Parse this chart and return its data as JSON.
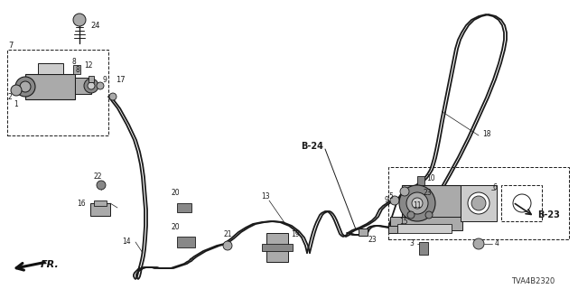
{
  "bg_color": "#ffffff",
  "part_number_ref": "TVA4B2320",
  "lc": "#1a1a1a",
  "gray1": "#888888",
  "gray2": "#aaaaaa",
  "gray3": "#cccccc",
  "fr_label": "FR.",
  "b24": "B-24",
  "b23": "B-23"
}
